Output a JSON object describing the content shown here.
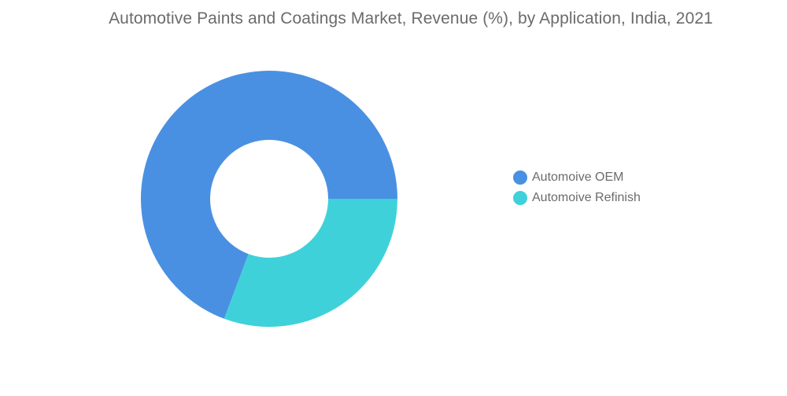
{
  "chart_data": {
    "type": "pie",
    "title": "Automotive Paints and Coatings Market, Revenue (%), by Application, India, 2021",
    "donut": true,
    "slices": [
      {
        "label": "Automoive OEM",
        "value": 69.3,
        "color": "#4a90e2"
      },
      {
        "label": "Automoive Refinish",
        "value": 30.7,
        "color": "#3fd1d9"
      }
    ],
    "legend_position": "right"
  }
}
